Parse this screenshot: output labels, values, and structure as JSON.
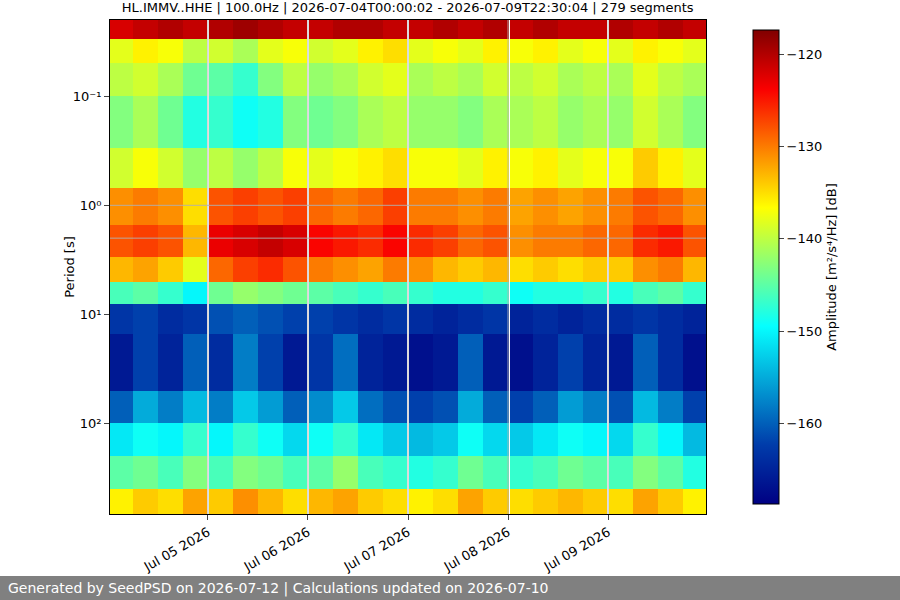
{
  "chart_data": {
    "type": "heatmap",
    "title": "HL.IMMV..HHE | 100.0Hz | 2026-07-04T00:00:02 - 2026-07-09T22:30:04 | 279 segments",
    "y_label": "Period [s]",
    "colorbar_label": "Amplitude [m²/s⁴/Hz] [dB]",
    "footer": "Generated by SeedPSD on 2026-07-12 | Calculations updated on 2026-07-10",
    "log": "y",
    "grid": true,
    "xlim": [
      "2026-07-04 00:30",
      "2026-07-09 23:30"
    ],
    "xticks": [
      {
        "value": "2026-07-05 00:00",
        "label": "Jul 05 2026"
      },
      {
        "value": "2026-07-06 00:00",
        "label": "Jul 06 2026"
      },
      {
        "value": "2026-07-07 00:00",
        "label": "Jul 07 2026"
      },
      {
        "value": "2026-07-08 00:00",
        "label": "Jul 08 2026"
      },
      {
        "value": "2026-07-09 00:00",
        "label": "Jul 09 2026"
      }
    ],
    "ylim": [
      0.02,
      676
    ],
    "yticks": [
      {
        "value": 0.1,
        "label": "10⁻¹"
      },
      {
        "value": 1,
        "label": "10⁰"
      },
      {
        "value": 10,
        "label": "10¹"
      },
      {
        "value": 100,
        "label": "10²"
      }
    ],
    "zlim": [
      -168.7,
      -117.4
    ],
    "zticks": [
      {
        "value": -160,
        "label": "−160"
      },
      {
        "value": -150,
        "label": "−150"
      },
      {
        "value": -140,
        "label": "−140"
      },
      {
        "value": -130,
        "label": "−130"
      },
      {
        "value": -120,
        "label": "−120"
      }
    ],
    "x_edges": [
      "2026-07-04 00:30",
      "2026-07-04 06:00",
      "2026-07-04 12:00",
      "2026-07-04 18:00",
      "2026-07-04 23:50",
      "2026-07-05 00:10",
      "2026-07-05 06:00",
      "2026-07-05 12:00",
      "2026-07-05 18:00",
      "2026-07-05 23:50",
      "2026-07-06 00:10",
      "2026-07-06 06:00",
      "2026-07-06 12:00",
      "2026-07-06 18:00",
      "2026-07-06 23:50",
      "2026-07-07 00:10",
      "2026-07-07 06:00",
      "2026-07-07 12:00",
      "2026-07-07 18:00",
      "2026-07-08 00:10",
      "2026-07-08 00:30",
      "2026-07-08 06:00",
      "2026-07-08 12:00",
      "2026-07-08 18:00",
      "2026-07-08 23:50",
      "2026-07-09 00:10",
      "2026-07-09 06:00",
      "2026-07-09 12:00",
      "2026-07-09 18:00",
      "2026-07-09 23:30"
    ],
    "y_edges": [
      0.02,
      0.03,
      0.05,
      0.1,
      0.3,
      0.7,
      1.5,
      3,
      5,
      8,
      15,
      50,
      100,
      200,
      400,
      676
    ],
    "cells": [
      [
        -122,
        -121,
        -120,
        -121,
        null,
        -120,
        -119,
        -120,
        -121,
        null,
        -121,
        -120,
        -120,
        -121,
        null,
        -121,
        -120,
        -121,
        -120,
        null,
        -121,
        -120,
        -121,
        -121,
        null,
        -120,
        -121,
        -120,
        -121
      ],
      [
        -138,
        -136,
        -137,
        -140,
        null,
        -139,
        -141,
        -138,
        -137,
        null,
        -139,
        -138,
        -136,
        -135,
        null,
        -138,
        -137,
        -138,
        -136,
        null,
        -137,
        -136,
        -138,
        -137,
        null,
        -138,
        -136,
        -137,
        -138
      ],
      [
        -140,
        -139,
        -141,
        -144,
        null,
        -145,
        -147,
        -143,
        -140,
        null,
        -142,
        -141,
        -139,
        -138,
        null,
        -141,
        -140,
        -141,
        -139,
        null,
        -140,
        -139,
        -141,
        -140,
        null,
        -141,
        -138,
        -140,
        -141
      ],
      [
        -143,
        -141,
        -144,
        -148,
        null,
        -147,
        -149,
        -148,
        -143,
        null,
        -144,
        -143,
        -141,
        -140,
        null,
        -142,
        -142,
        -143,
        -141,
        null,
        -141,
        -140,
        -142,
        -141,
        null,
        -142,
        -139,
        -141,
        -143
      ],
      [
        -139,
        -137,
        -139,
        -142,
        null,
        -140,
        -142,
        -140,
        -137,
        null,
        -138,
        -137,
        -136,
        -135,
        null,
        -137,
        -137,
        -138,
        -136,
        null,
        -137,
        -136,
        -138,
        -137,
        null,
        -137,
        -134,
        -136,
        -138
      ],
      [
        -131,
        -130,
        -131,
        -135,
        null,
        -128,
        -127,
        -128,
        -127,
        null,
        -129,
        -130,
        -129,
        -127,
        null,
        -130,
        -130,
        -131,
        -130,
        null,
        -132,
        -131,
        -132,
        -131,
        null,
        -130,
        -128,
        -129,
        -131
      ],
      [
        -128,
        -127,
        -128,
        -133,
        null,
        -123,
        -122,
        -121,
        -122,
        null,
        -124,
        -125,
        -126,
        -124,
        null,
        -126,
        -127,
        -129,
        -128,
        null,
        -131,
        -130,
        -130,
        -129,
        null,
        -129,
        -126,
        -125,
        -128
      ],
      [
        -133,
        -132,
        -134,
        -138,
        null,
        -129,
        -127,
        -126,
        -128,
        null,
        -130,
        -131,
        -132,
        -130,
        null,
        -131,
        -133,
        -134,
        -133,
        null,
        -135,
        -134,
        -135,
        -134,
        null,
        -134,
        -131,
        -130,
        -133
      ],
      [
        -146,
        -145,
        -147,
        -150,
        null,
        -144,
        -142,
        -143,
        -144,
        null,
        -145,
        -146,
        -147,
        -146,
        null,
        -147,
        -148,
        -148,
        -147,
        null,
        -149,
        -148,
        -148,
        -147,
        null,
        -148,
        -146,
        -145,
        -147
      ],
      [
        -163,
        -162,
        -164,
        -163,
        null,
        -161,
        -160,
        -161,
        -162,
        null,
        -162,
        -163,
        -164,
        -163,
        null,
        -164,
        -165,
        -164,
        -163,
        null,
        -165,
        -164,
        -165,
        -164,
        null,
        -164,
        -163,
        -164,
        -165
      ],
      [
        -166,
        -162,
        -165,
        -160,
        null,
        -164,
        -158,
        -162,
        -166,
        null,
        -163,
        -159,
        -165,
        -166,
        null,
        -167,
        -166,
        -160,
        -166,
        null,
        -167,
        -165,
        -162,
        -165,
        null,
        -166,
        -160,
        -164,
        -167
      ],
      [
        -160,
        -155,
        -158,
        -154,
        null,
        -158,
        -153,
        -156,
        -160,
        null,
        -157,
        -153,
        -159,
        -161,
        null,
        -162,
        -161,
        -155,
        -160,
        null,
        -162,
        -160,
        -156,
        -158,
        null,
        -161,
        -154,
        -158,
        -162
      ],
      [
        -151,
        -149,
        -150,
        -147,
        null,
        -150,
        -147,
        -149,
        -152,
        null,
        -149,
        -147,
        -151,
        -153,
        null,
        -154,
        -153,
        -149,
        -152,
        null,
        -153,
        -151,
        -149,
        -150,
        null,
        -152,
        -147,
        -150,
        -154
      ],
      [
        -145,
        -144,
        -146,
        -143,
        null,
        -146,
        -143,
        -144,
        -146,
        null,
        -145,
        -142,
        -146,
        -147,
        null,
        -148,
        -147,
        -144,
        -146,
        null,
        -147,
        -146,
        -144,
        -145,
        null,
        -146,
        -143,
        -145,
        -148
      ],
      [
        -136,
        -134,
        -135,
        -132,
        null,
        -134,
        -131,
        -133,
        -135,
        null,
        -133,
        -132,
        -134,
        -135,
        null,
        -136,
        -135,
        -132,
        -134,
        null,
        -135,
        -134,
        -133,
        -134,
        null,
        -135,
        -132,
        -134,
        -136
      ]
    ]
  }
}
